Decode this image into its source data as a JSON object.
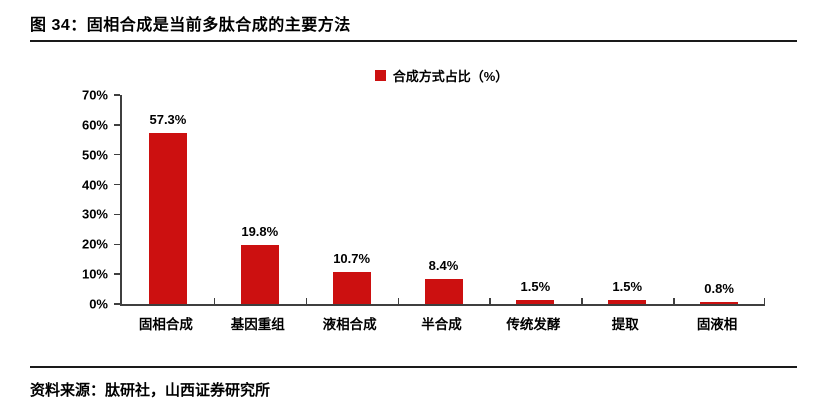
{
  "page": {
    "title": "图 34：固相合成是当前多肽合成的主要方法",
    "source": "资料来源：肽研社，山西证券研究所"
  },
  "legend": {
    "label": "合成方式占比（%）"
  },
  "colors": {
    "bar": "#CC1010",
    "axis": "#3f3f3f",
    "rule": "#1a1a1a",
    "text": "#000000"
  },
  "chart_data": {
    "type": "bar",
    "title": "合成方式占比（%）",
    "categories": [
      "固相合成",
      "基因重组",
      "液相合成",
      "半合成",
      "传统发酵",
      "提取",
      "固液相"
    ],
    "values": [
      57.3,
      19.8,
      10.7,
      8.4,
      1.5,
      1.5,
      0.8
    ],
    "data_labels": [
      "57.3%",
      "19.8%",
      "10.7%",
      "8.4%",
      "1.5%",
      "1.5%",
      "0.8%"
    ],
    "xlabel": "",
    "ylabel": "",
    "ylim": [
      0,
      70
    ],
    "ytick_step": 10,
    "ytick_labels": [
      "0%",
      "10%",
      "20%",
      "30%",
      "40%",
      "50%",
      "60%",
      "70%"
    ],
    "grid": false,
    "legend_position": "top-center"
  }
}
